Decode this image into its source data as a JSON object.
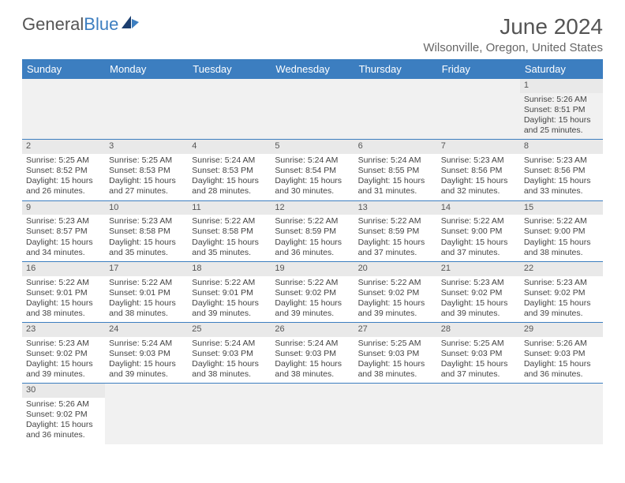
{
  "logo": {
    "text_a": "General",
    "text_b": "Blue"
  },
  "title": "June 2024",
  "location": "Wilsonville, Oregon, United States",
  "colors": {
    "header_bg": "#3c7ec0",
    "header_text": "#ffffff",
    "daynum_bg": "#e9e9e9",
    "cell_border": "#3c7ec0",
    "logo_gray": "#555555",
    "logo_blue": "#3c7ec0"
  },
  "weekdays": [
    "Sunday",
    "Monday",
    "Tuesday",
    "Wednesday",
    "Thursday",
    "Friday",
    "Saturday"
  ],
  "weeks": [
    [
      null,
      null,
      null,
      null,
      null,
      null,
      {
        "n": "1",
        "sr": "Sunrise: 5:26 AM",
        "ss": "Sunset: 8:51 PM",
        "d1": "Daylight: 15 hours",
        "d2": "and 25 minutes."
      }
    ],
    [
      {
        "n": "2",
        "sr": "Sunrise: 5:25 AM",
        "ss": "Sunset: 8:52 PM",
        "d1": "Daylight: 15 hours",
        "d2": "and 26 minutes."
      },
      {
        "n": "3",
        "sr": "Sunrise: 5:25 AM",
        "ss": "Sunset: 8:53 PM",
        "d1": "Daylight: 15 hours",
        "d2": "and 27 minutes."
      },
      {
        "n": "4",
        "sr": "Sunrise: 5:24 AM",
        "ss": "Sunset: 8:53 PM",
        "d1": "Daylight: 15 hours",
        "d2": "and 28 minutes."
      },
      {
        "n": "5",
        "sr": "Sunrise: 5:24 AM",
        "ss": "Sunset: 8:54 PM",
        "d1": "Daylight: 15 hours",
        "d2": "and 30 minutes."
      },
      {
        "n": "6",
        "sr": "Sunrise: 5:24 AM",
        "ss": "Sunset: 8:55 PM",
        "d1": "Daylight: 15 hours",
        "d2": "and 31 minutes."
      },
      {
        "n": "7",
        "sr": "Sunrise: 5:23 AM",
        "ss": "Sunset: 8:56 PM",
        "d1": "Daylight: 15 hours",
        "d2": "and 32 minutes."
      },
      {
        "n": "8",
        "sr": "Sunrise: 5:23 AM",
        "ss": "Sunset: 8:56 PM",
        "d1": "Daylight: 15 hours",
        "d2": "and 33 minutes."
      }
    ],
    [
      {
        "n": "9",
        "sr": "Sunrise: 5:23 AM",
        "ss": "Sunset: 8:57 PM",
        "d1": "Daylight: 15 hours",
        "d2": "and 34 minutes."
      },
      {
        "n": "10",
        "sr": "Sunrise: 5:23 AM",
        "ss": "Sunset: 8:58 PM",
        "d1": "Daylight: 15 hours",
        "d2": "and 35 minutes."
      },
      {
        "n": "11",
        "sr": "Sunrise: 5:22 AM",
        "ss": "Sunset: 8:58 PM",
        "d1": "Daylight: 15 hours",
        "d2": "and 35 minutes."
      },
      {
        "n": "12",
        "sr": "Sunrise: 5:22 AM",
        "ss": "Sunset: 8:59 PM",
        "d1": "Daylight: 15 hours",
        "d2": "and 36 minutes."
      },
      {
        "n": "13",
        "sr": "Sunrise: 5:22 AM",
        "ss": "Sunset: 8:59 PM",
        "d1": "Daylight: 15 hours",
        "d2": "and 37 minutes."
      },
      {
        "n": "14",
        "sr": "Sunrise: 5:22 AM",
        "ss": "Sunset: 9:00 PM",
        "d1": "Daylight: 15 hours",
        "d2": "and 37 minutes."
      },
      {
        "n": "15",
        "sr": "Sunrise: 5:22 AM",
        "ss": "Sunset: 9:00 PM",
        "d1": "Daylight: 15 hours",
        "d2": "and 38 minutes."
      }
    ],
    [
      {
        "n": "16",
        "sr": "Sunrise: 5:22 AM",
        "ss": "Sunset: 9:01 PM",
        "d1": "Daylight: 15 hours",
        "d2": "and 38 minutes."
      },
      {
        "n": "17",
        "sr": "Sunrise: 5:22 AM",
        "ss": "Sunset: 9:01 PM",
        "d1": "Daylight: 15 hours",
        "d2": "and 38 minutes."
      },
      {
        "n": "18",
        "sr": "Sunrise: 5:22 AM",
        "ss": "Sunset: 9:01 PM",
        "d1": "Daylight: 15 hours",
        "d2": "and 39 minutes."
      },
      {
        "n": "19",
        "sr": "Sunrise: 5:22 AM",
        "ss": "Sunset: 9:02 PM",
        "d1": "Daylight: 15 hours",
        "d2": "and 39 minutes."
      },
      {
        "n": "20",
        "sr": "Sunrise: 5:22 AM",
        "ss": "Sunset: 9:02 PM",
        "d1": "Daylight: 15 hours",
        "d2": "and 39 minutes."
      },
      {
        "n": "21",
        "sr": "Sunrise: 5:23 AM",
        "ss": "Sunset: 9:02 PM",
        "d1": "Daylight: 15 hours",
        "d2": "and 39 minutes."
      },
      {
        "n": "22",
        "sr": "Sunrise: 5:23 AM",
        "ss": "Sunset: 9:02 PM",
        "d1": "Daylight: 15 hours",
        "d2": "and 39 minutes."
      }
    ],
    [
      {
        "n": "23",
        "sr": "Sunrise: 5:23 AM",
        "ss": "Sunset: 9:02 PM",
        "d1": "Daylight: 15 hours",
        "d2": "and 39 minutes."
      },
      {
        "n": "24",
        "sr": "Sunrise: 5:24 AM",
        "ss": "Sunset: 9:03 PM",
        "d1": "Daylight: 15 hours",
        "d2": "and 39 minutes."
      },
      {
        "n": "25",
        "sr": "Sunrise: 5:24 AM",
        "ss": "Sunset: 9:03 PM",
        "d1": "Daylight: 15 hours",
        "d2": "and 38 minutes."
      },
      {
        "n": "26",
        "sr": "Sunrise: 5:24 AM",
        "ss": "Sunset: 9:03 PM",
        "d1": "Daylight: 15 hours",
        "d2": "and 38 minutes."
      },
      {
        "n": "27",
        "sr": "Sunrise: 5:25 AM",
        "ss": "Sunset: 9:03 PM",
        "d1": "Daylight: 15 hours",
        "d2": "and 38 minutes."
      },
      {
        "n": "28",
        "sr": "Sunrise: 5:25 AM",
        "ss": "Sunset: 9:03 PM",
        "d1": "Daylight: 15 hours",
        "d2": "and 37 minutes."
      },
      {
        "n": "29",
        "sr": "Sunrise: 5:26 AM",
        "ss": "Sunset: 9:03 PM",
        "d1": "Daylight: 15 hours",
        "d2": "and 36 minutes."
      }
    ],
    [
      {
        "n": "30",
        "sr": "Sunrise: 5:26 AM",
        "ss": "Sunset: 9:02 PM",
        "d1": "Daylight: 15 hours",
        "d2": "and 36 minutes."
      },
      null,
      null,
      null,
      null,
      null,
      null
    ]
  ]
}
